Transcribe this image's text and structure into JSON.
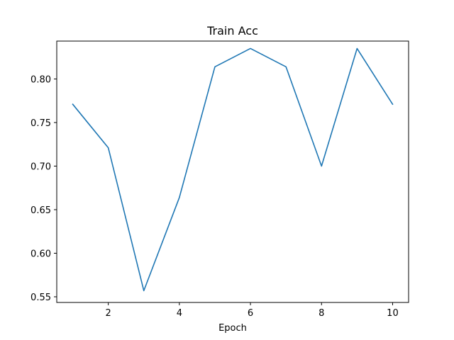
{
  "chart_data": {
    "type": "line",
    "title": "Train Acc",
    "xlabel": "Epoch",
    "ylabel": "",
    "xlim": [
      0.55,
      10.45
    ],
    "ylim": [
      0.5435,
      0.8435
    ],
    "x_ticks": [
      2,
      4,
      6,
      8,
      10
    ],
    "x_tick_labels": [
      "2",
      "4",
      "6",
      "8",
      "10"
    ],
    "y_ticks": [
      0.55,
      0.6,
      0.65,
      0.7,
      0.75,
      0.8
    ],
    "y_tick_labels": [
      "0.55",
      "0.60",
      "0.65",
      "0.70",
      "0.75",
      "0.80"
    ],
    "grid": false,
    "legend": false,
    "series": [
      {
        "color": "#1f77b4",
        "x": [
          1,
          2,
          3,
          4,
          5,
          6,
          7,
          8,
          9,
          10
        ],
        "y": [
          0.771,
          0.721,
          0.557,
          0.664,
          0.814,
          0.835,
          0.814,
          0.7,
          0.835,
          0.771
        ]
      }
    ]
  }
}
